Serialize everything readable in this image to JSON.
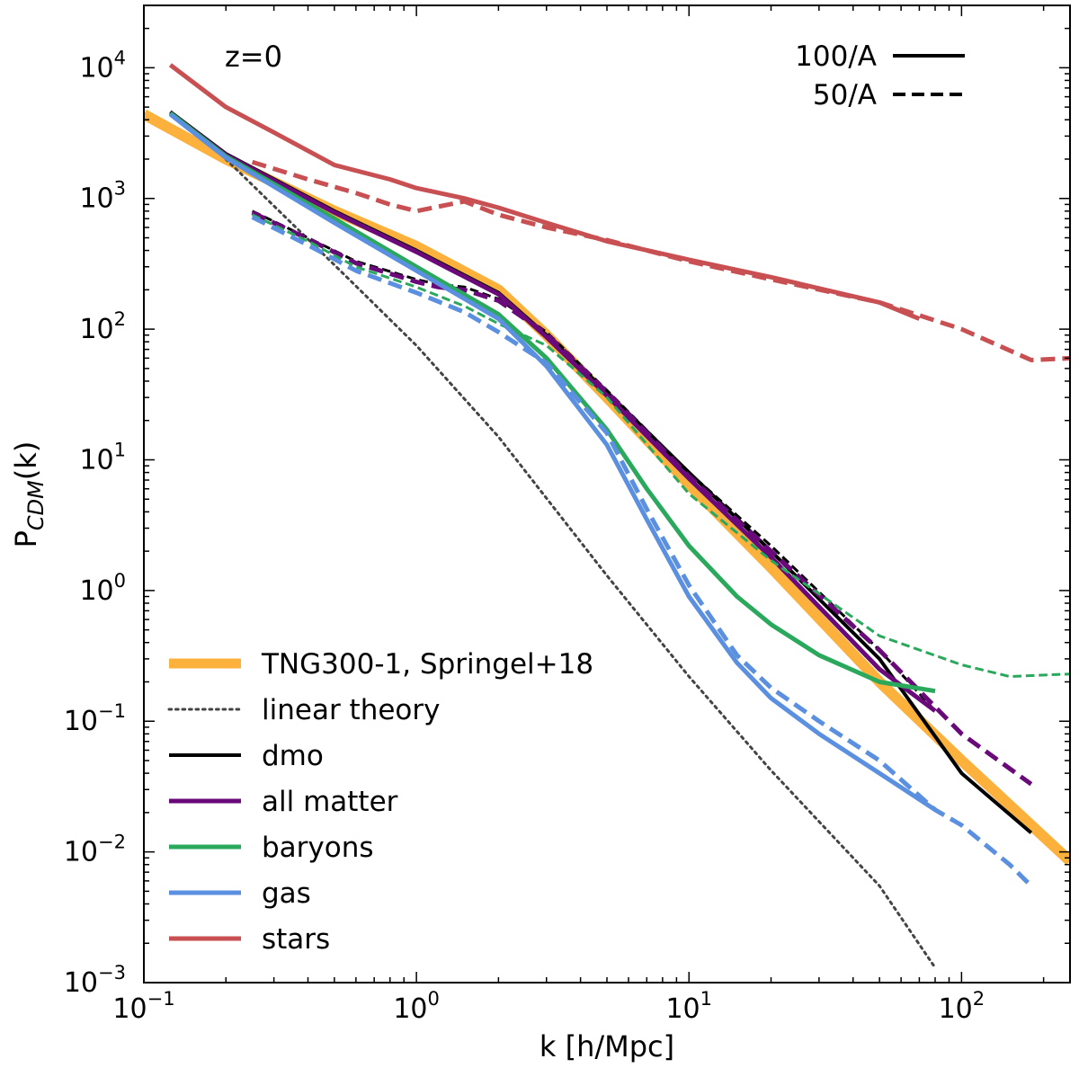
{
  "chart_data": {
    "type": "line",
    "title": "",
    "annotation": "z=0",
    "xlabel": "k [h/Mpc]",
    "ylabel_main": "P",
    "ylabel_sub": "CDM",
    "ylabel_tail": "(k)",
    "xscale": "log",
    "yscale": "log",
    "xlim": [
      0.1,
      250
    ],
    "ylim": [
      0.001,
      30000
    ],
    "x_ticks": [
      {
        "value": 0.1,
        "base": "10",
        "exp": "−1"
      },
      {
        "value": 1,
        "base": "10",
        "exp": "0"
      },
      {
        "value": 10,
        "base": "10",
        "exp": "1"
      },
      {
        "value": 100,
        "base": "10",
        "exp": "2"
      }
    ],
    "y_ticks": [
      {
        "value": 0.001,
        "base": "10",
        "exp": "−3"
      },
      {
        "value": 0.01,
        "base": "10",
        "exp": "−2"
      },
      {
        "value": 0.1,
        "base": "10",
        "exp": "−1"
      },
      {
        "value": 1,
        "base": "10",
        "exp": "0"
      },
      {
        "value": 10,
        "base": "10",
        "exp": "1"
      },
      {
        "value": 100,
        "base": "10",
        "exp": "2"
      },
      {
        "value": 1000,
        "base": "10",
        "exp": "3"
      },
      {
        "value": 10000,
        "base": "10",
        "exp": "4"
      }
    ],
    "grid": false,
    "legend_style": {
      "placement": "top-right",
      "entries": [
        {
          "label": "100/A",
          "dash": "solid"
        },
        {
          "label": "50/A",
          "dash": "dashed"
        }
      ]
    },
    "legend_species": {
      "placement": "lower-left",
      "entries": [
        {
          "label": "TNG300-1, Springel+18",
          "color": "#fbb13c",
          "width": 11,
          "dash": "solid"
        },
        {
          "label": "linear theory",
          "color": "#444444",
          "width": 3,
          "dash": "dotted"
        },
        {
          "label": "dmo",
          "color": "#000000",
          "width": 4,
          "dash": "solid"
        },
        {
          "label": "all matter",
          "color": "#6a0a7a",
          "width": 5,
          "dash": "solid"
        },
        {
          "label": "baryons",
          "color": "#2aa85c",
          "width": 5,
          "dash": "solid"
        },
        {
          "label": "gas",
          "color": "#5b8fe0",
          "width": 5,
          "dash": "solid"
        },
        {
          "label": "stars",
          "color": "#c84f52",
          "width": 5,
          "dash": "solid"
        }
      ]
    },
    "series": [
      {
        "name": "TNG300-1, Springel+18",
        "color": "#fbb13c",
        "width": 12,
        "dash": "solid",
        "x": [
          0.1,
          0.2,
          0.5,
          1,
          2,
          3,
          5,
          10,
          20,
          50,
          100,
          250
        ],
        "y": [
          4400,
          2000,
          800,
          430,
          200,
          90,
          30,
          6.5,
          1.5,
          0.2,
          0.05,
          0.0085
        ]
      },
      {
        "name": "linear theory",
        "color": "#444444",
        "width": 3,
        "dash": "dotted",
        "x": [
          0.2,
          0.5,
          1,
          2,
          5,
          10,
          20,
          50,
          80
        ],
        "y": [
          2000,
          310,
          75,
          15,
          1.3,
          0.22,
          0.042,
          0.0055,
          0.0013
        ]
      },
      {
        "name": "dmo 100/A",
        "color": "#000000",
        "width": 4,
        "dash": "solid",
        "x": [
          0.125,
          0.2,
          0.5,
          1,
          2,
          3,
          5,
          10,
          20,
          50,
          100,
          180
        ],
        "y": [
          4600,
          2200,
          800,
          400,
          190,
          90,
          33,
          8,
          2,
          0.3,
          0.04,
          0.014
        ]
      },
      {
        "name": "dmo 50/A",
        "color": "#000000",
        "width": 3,
        "dash": "dashed",
        "x": [
          0.25,
          0.4,
          0.6,
          1,
          1.2,
          1.5,
          2,
          3,
          5,
          10,
          20,
          50,
          80
        ],
        "y": [
          800,
          500,
          330,
          240,
          220,
          210,
          170,
          95,
          34,
          8,
          2.2,
          0.35,
          0.12
        ]
      },
      {
        "name": "all matter 100/A",
        "color": "#6a0a7a",
        "width": 5,
        "dash": "solid",
        "x": [
          0.125,
          0.2,
          0.5,
          1,
          2,
          3,
          5,
          10,
          20,
          50,
          80
        ],
        "y": [
          4500,
          2150,
          780,
          390,
          185,
          87,
          31,
          7.2,
          1.8,
          0.25,
          0.12
        ]
      },
      {
        "name": "all matter 50/A",
        "color": "#6a0a7a",
        "width": 5,
        "dash": "dashed",
        "x": [
          0.25,
          0.4,
          0.6,
          1,
          1.2,
          1.5,
          2,
          3,
          5,
          10,
          20,
          50,
          100,
          180
        ],
        "y": [
          780,
          490,
          320,
          230,
          210,
          200,
          165,
          92,
          33,
          7.5,
          2,
          0.35,
          0.08,
          0.033
        ]
      },
      {
        "name": "baryons 100/A",
        "color": "#2aa85c",
        "width": 5,
        "dash": "solid",
        "x": [
          0.125,
          0.2,
          0.5,
          1,
          2,
          3,
          5,
          7,
          10,
          15,
          20,
          30,
          50,
          80
        ],
        "y": [
          4500,
          2100,
          700,
          300,
          130,
          60,
          17,
          6,
          2.2,
          0.9,
          0.55,
          0.32,
          0.2,
          0.17
        ]
      },
      {
        "name": "baryons 50/A",
        "color": "#2aa85c",
        "width": 3,
        "dash": "dashed",
        "x": [
          0.25,
          0.4,
          0.6,
          1,
          1.5,
          2,
          3,
          5,
          10,
          20,
          50,
          100,
          150,
          250
        ],
        "y": [
          750,
          470,
          300,
          210,
          150,
          110,
          75,
          30,
          5.5,
          1.7,
          0.45,
          0.27,
          0.22,
          0.23
        ]
      },
      {
        "name": "gas 100/A",
        "color": "#5b8fe0",
        "width": 5,
        "dash": "solid",
        "x": [
          0.125,
          0.2,
          0.5,
          1,
          2,
          3,
          5,
          7,
          10,
          15,
          20,
          30,
          50,
          80
        ],
        "y": [
          4400,
          2050,
          650,
          280,
          120,
          52,
          13,
          3.5,
          0.9,
          0.28,
          0.15,
          0.08,
          0.04,
          0.021
        ]
      },
      {
        "name": "gas 50/A",
        "color": "#5b8fe0",
        "width": 5,
        "dash": "dashed",
        "x": [
          0.25,
          0.4,
          0.6,
          1,
          1.5,
          2,
          3,
          5,
          7,
          10,
          15,
          20,
          30,
          50,
          80,
          100,
          150,
          180
        ],
        "y": [
          720,
          440,
          280,
          190,
          135,
          95,
          55,
          16,
          4.2,
          1.1,
          0.32,
          0.18,
          0.1,
          0.05,
          0.021,
          0.016,
          0.008,
          0.0055
        ]
      },
      {
        "name": "stars 100/A",
        "color": "#c84f52",
        "width": 5,
        "dash": "solid",
        "x": [
          0.125,
          0.2,
          0.3,
          0.5,
          0.8,
          1,
          1.5,
          2,
          3,
          5,
          10,
          20,
          50,
          70
        ],
        "y": [
          10500,
          5000,
          3200,
          1800,
          1400,
          1200,
          1000,
          850,
          650,
          470,
          340,
          250,
          160,
          120
        ]
      },
      {
        "name": "stars 50/A",
        "color": "#c84f52",
        "width": 5,
        "dash": "dashed",
        "x": [
          0.25,
          0.4,
          0.6,
          0.8,
          1,
          1.5,
          2,
          3,
          5,
          10,
          20,
          50,
          100,
          180,
          250
        ],
        "y": [
          1900,
          1400,
          1100,
          900,
          800,
          950,
          750,
          600,
          480,
          330,
          240,
          160,
          100,
          58,
          60
        ]
      }
    ]
  }
}
